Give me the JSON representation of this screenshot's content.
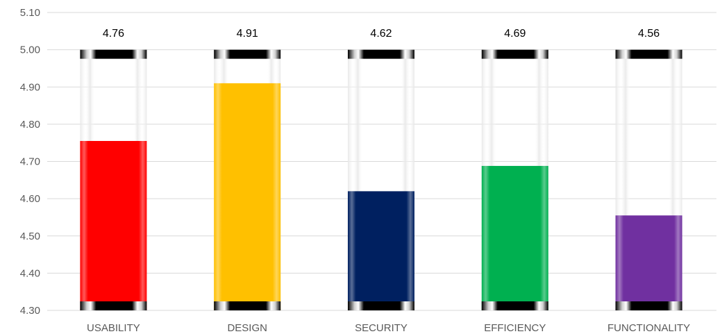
{
  "chart_data": {
    "type": "bar",
    "title": "",
    "xlabel": "",
    "ylabel": "",
    "ylim": [
      4.3,
      5.1
    ],
    "yticks": [
      "4.30",
      "4.40",
      "4.50",
      "4.60",
      "4.70",
      "4.80",
      "4.90",
      "5.00",
      "5.10"
    ],
    "categories": [
      "USABILITY",
      "DESIGN",
      "SECURITY",
      "EFFICIENCY",
      "FUNCTIONALITY"
    ],
    "values": [
      4.755,
      4.91,
      4.62,
      4.688,
      4.555
    ],
    "data_labels": [
      "4.76",
      "4.91",
      "4.62",
      "4.69",
      "4.56"
    ],
    "colors": [
      "#ff0000",
      "#ffc000",
      "#002060",
      "#00b050",
      "#7030a0"
    ],
    "tube_top": 5.0,
    "grid": true,
    "legend": "none"
  }
}
